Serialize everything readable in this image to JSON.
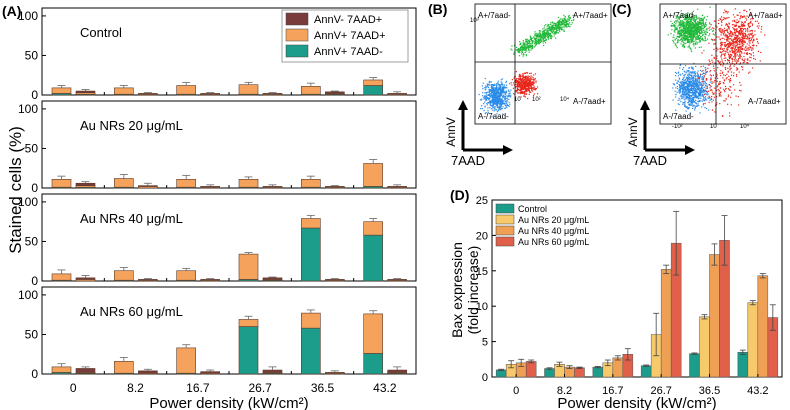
{
  "colors": {
    "teal": "#1c9c8a",
    "orange": "#f5a35c",
    "maroon": "#7a3b3b",
    "bax_control": "#1c9c8a",
    "bax_20": "#f7c96b",
    "bax_40": "#f0a055",
    "bax_60": "#e0604a",
    "flow_green": "#22b83a",
    "flow_red": "#e8261c",
    "flow_blue": "#2a8be8"
  },
  "panel_labels": {
    "a": "(A)",
    "b": "(B)",
    "c": "(C)",
    "d": "(D)"
  },
  "flow": {
    "quadrant_labels": [
      "A+/7aad-",
      "A+/7aad+",
      "A-/7aad-",
      "A-/7aad+"
    ],
    "x_axis_label": "7AAD",
    "y_axis_label": "AnnV",
    "tick_labels": [
      "10",
      "10²",
      "10³",
      "10⁴",
      "10⁵",
      "-10²"
    ]
  },
  "chart_data": [
    {
      "type": "bar",
      "stacked": true,
      "panel": "A",
      "ylabel": "Stained cells (%)",
      "xlabel": "Power density (kW/cm²)",
      "categories": [
        "0",
        "8.2",
        "16.7",
        "26.7",
        "36.5",
        "43.2"
      ],
      "ylim": [
        0,
        110
      ],
      "yticks": [
        "0",
        "50",
        "100"
      ],
      "legend": [
        "AnnV- 7AAD+",
        "AnnV+ 7AAD+",
        "AnnV+ 7AAD-"
      ],
      "subplots": [
        {
          "title": "Control",
          "groups": [
            {
              "category": "0",
              "teal": 2,
              "orange": 7,
              "maroon": 0,
              "err": 3
            },
            {
              "category": "0",
              "teal": 1,
              "orange": 2,
              "maroon": 2,
              "err": 2
            },
            {
              "category": "8.2",
              "teal": 1,
              "orange": 8,
              "maroon": 0,
              "err": 3
            },
            {
              "category": "8.2",
              "teal": 0,
              "orange": 1,
              "maroon": 1,
              "err": 1
            },
            {
              "category": "16.7",
              "teal": 1,
              "orange": 11,
              "maroon": 0,
              "err": 4
            },
            {
              "category": "16.7",
              "teal": 0,
              "orange": 1,
              "maroon": 1,
              "err": 1
            },
            {
              "category": "26.7",
              "teal": 1,
              "orange": 12,
              "maroon": 0,
              "err": 3
            },
            {
              "category": "26.7",
              "teal": 0,
              "orange": 1,
              "maroon": 1,
              "err": 1
            },
            {
              "category": "36.5",
              "teal": 1,
              "orange": 10,
              "maroon": 0,
              "err": 4
            },
            {
              "category": "36.5",
              "teal": 1,
              "orange": 1,
              "maroon": 2,
              "err": 1
            },
            {
              "category": "43.2",
              "teal": 12,
              "orange": 7,
              "maroon": 0,
              "err": 3
            },
            {
              "category": "43.2",
              "teal": 0,
              "orange": 1,
              "maroon": 1,
              "err": 2
            }
          ]
        },
        {
          "title": "Au NRs 20 μg/mL",
          "groups": [
            {
              "category": "0",
              "teal": 1,
              "orange": 10,
              "maroon": 0,
              "err": 4
            },
            {
              "category": "0",
              "teal": 1,
              "orange": 2,
              "maroon": 3,
              "err": 2
            },
            {
              "category": "8.2",
              "teal": 1,
              "orange": 11,
              "maroon": 0,
              "err": 5
            },
            {
              "category": "8.2",
              "teal": 0,
              "orange": 2,
              "maroon": 1,
              "err": 3
            },
            {
              "category": "16.7",
              "teal": 1,
              "orange": 10,
              "maroon": 0,
              "err": 5
            },
            {
              "category": "16.7",
              "teal": 0,
              "orange": 1,
              "maroon": 1,
              "err": 2
            },
            {
              "category": "26.7",
              "teal": 1,
              "orange": 10,
              "maroon": 0,
              "err": 3
            },
            {
              "category": "26.7",
              "teal": 0,
              "orange": 1,
              "maroon": 1,
              "err": 2
            },
            {
              "category": "36.5",
              "teal": 1,
              "orange": 10,
              "maroon": 0,
              "err": 4
            },
            {
              "category": "36.5",
              "teal": 0,
              "orange": 1,
              "maroon": 1,
              "err": 1
            },
            {
              "category": "43.2",
              "teal": 2,
              "orange": 29,
              "maroon": 0,
              "err": 5
            },
            {
              "category": "43.2",
              "teal": 0,
              "orange": 1,
              "maroon": 1,
              "err": 2
            }
          ]
        },
        {
          "title": "Au NRs 40 μg/mL",
          "groups": [
            {
              "category": "0",
              "teal": 1,
              "orange": 8,
              "maroon": 0,
              "err": 5
            },
            {
              "category": "0",
              "teal": 0,
              "orange": 2,
              "maroon": 2,
              "err": 3
            },
            {
              "category": "8.2",
              "teal": 1,
              "orange": 12,
              "maroon": 0,
              "err": 4
            },
            {
              "category": "8.2",
              "teal": 0,
              "orange": 1,
              "maroon": 1,
              "err": 1
            },
            {
              "category": "16.7",
              "teal": 1,
              "orange": 12,
              "maroon": 0,
              "err": 3
            },
            {
              "category": "16.7",
              "teal": 0,
              "orange": 1,
              "maroon": 1,
              "err": 1
            },
            {
              "category": "26.7",
              "teal": 2,
              "orange": 32,
              "maroon": 0,
              "err": 2
            },
            {
              "category": "26.7",
              "teal": 1,
              "orange": 1,
              "maroon": 2,
              "err": 1
            },
            {
              "category": "36.5",
              "teal": 67,
              "orange": 12,
              "maroon": 0,
              "err": 4
            },
            {
              "category": "36.5",
              "teal": 0,
              "orange": 1,
              "maroon": 1,
              "err": 1
            },
            {
              "category": "43.2",
              "teal": 58,
              "orange": 17,
              "maroon": 0,
              "err": 4
            },
            {
              "category": "43.2",
              "teal": 0,
              "orange": 1,
              "maroon": 1,
              "err": 1
            }
          ]
        },
        {
          "title": "Au NRs 60 μg/mL",
          "groups": [
            {
              "category": "0",
              "teal": 2,
              "orange": 7,
              "maroon": 0,
              "err": 4
            },
            {
              "category": "0",
              "teal": 1,
              "orange": 1,
              "maroon": 5,
              "err": 2
            },
            {
              "category": "8.2",
              "teal": 1,
              "orange": 15,
              "maroon": 0,
              "err": 5
            },
            {
              "category": "8.2",
              "teal": 0,
              "orange": 1,
              "maroon": 3,
              "err": 2
            },
            {
              "category": "16.7",
              "teal": 1,
              "orange": 32,
              "maroon": 0,
              "err": 4
            },
            {
              "category": "16.7",
              "teal": 0,
              "orange": 1,
              "maroon": 2,
              "err": 2
            },
            {
              "category": "26.7",
              "teal": 60,
              "orange": 9,
              "maroon": 0,
              "err": 4
            },
            {
              "category": "26.7",
              "teal": 1,
              "orange": 1,
              "maroon": 3,
              "err": 4
            },
            {
              "category": "36.5",
              "teal": 58,
              "orange": 19,
              "maroon": 0,
              "err": 4
            },
            {
              "category": "36.5",
              "teal": 0,
              "orange": 1,
              "maroon": 1,
              "err": 2
            },
            {
              "category": "43.2",
              "teal": 26,
              "orange": 50,
              "maroon": 0,
              "err": 4
            },
            {
              "category": "43.2",
              "teal": 1,
              "orange": 1,
              "maroon": 3,
              "err": 4
            }
          ]
        }
      ]
    },
    {
      "type": "bar",
      "panel": "D",
      "ylabel": "Bax expression (fold increase)",
      "xlabel": "Power density (kW/cm²)",
      "categories": [
        "0",
        "8.2",
        "16.7",
        "26.7",
        "36.5",
        "43.2"
      ],
      "ylim": [
        0,
        25
      ],
      "yticks": [
        "0",
        "5",
        "10",
        "15",
        "20",
        "25"
      ],
      "legend_position": "top-left",
      "series": [
        {
          "name": "Control",
          "values": [
            1.0,
            1.2,
            1.4,
            1.6,
            3.3,
            3.5
          ],
          "errors": [
            0.1,
            0.1,
            0.1,
            0.1,
            0.1,
            0.3
          ]
        },
        {
          "name": "Au NRs 20 μg/mL",
          "values": [
            1.8,
            1.8,
            2.0,
            6.0,
            8.5,
            10.5
          ],
          "errors": [
            0.5,
            0.3,
            0.4,
            3.0,
            0.3,
            0.3
          ]
        },
        {
          "name": "Au NRs 40 μg/mL",
          "values": [
            2.0,
            1.4,
            2.7,
            15.2,
            17.3,
            14.3
          ],
          "errors": [
            0.5,
            0.2,
            0.3,
            0.6,
            1.5,
            0.3
          ]
        },
        {
          "name": "Au NRs 60 μg/mL",
          "values": [
            2.2,
            1.3,
            3.2,
            18.9,
            19.3,
            8.4
          ],
          "errors": [
            0.2,
            0.1,
            0.8,
            4.5,
            3.5,
            1.8
          ]
        }
      ]
    }
  ]
}
